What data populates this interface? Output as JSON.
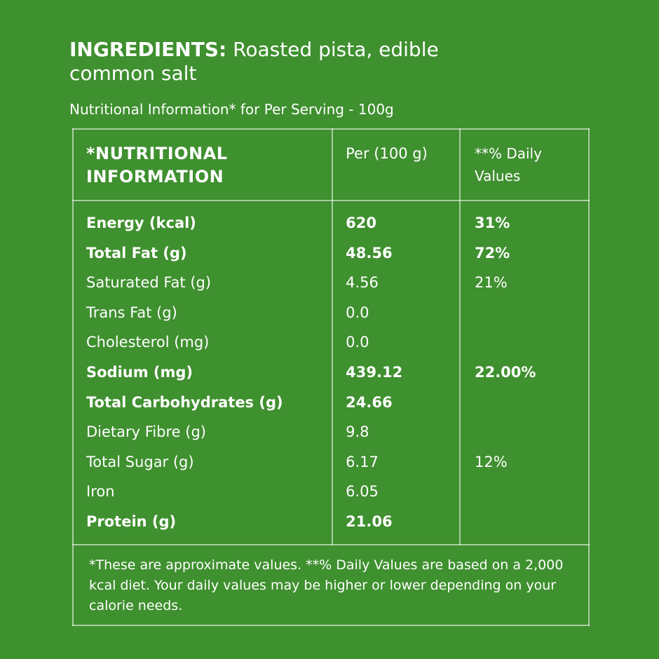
{
  "ingredients": {
    "label": "INGREDIENTS:",
    "text": "Roasted pista, edible common salt"
  },
  "subtitle": "Nutritional Information* for Per Serving - 100g",
  "table": {
    "header": [
      "*NUTRITIONAL INFORMATION",
      "Per (100 g)",
      "**% Daily Values"
    ],
    "rows": [
      {
        "nutrient": "Energy (kcal)",
        "per_100g": "620",
        "daily_value": "31%",
        "bold": true
      },
      {
        "nutrient": "Total Fat (g)",
        "per_100g": "48.56",
        "daily_value": "72%",
        "bold": true
      },
      {
        "nutrient": "Saturated Fat (g)",
        "per_100g": "4.56",
        "daily_value": "21%",
        "bold": false
      },
      {
        "nutrient": "Trans Fat (g)",
        "per_100g": "0.0",
        "bold": false
      },
      {
        "nutrient": "Cholesterol (mg)",
        "per_100g": "0.0",
        "bold": false
      },
      {
        "nutrient": "Sodium (mg)",
        "per_100g": "439.12",
        "daily_value": "22.00%",
        "bold": true
      },
      {
        "nutrient": "Total Carbohydrates (g)",
        "per_100g": "24.66",
        "bold": true
      },
      {
        "nutrient": "Dietary Fibre (g)",
        "per_100g": "9.8",
        "bold": false
      },
      {
        "nutrient": "Total Sugar (g)",
        "per_100g": "6.17",
        "daily_value": "12%",
        "bold": false
      },
      {
        "nutrient": "Iron",
        "per_100g": "6.05",
        "bold": false
      },
      {
        "nutrient": "Protein (g)",
        "per_100g": "21.06",
        "bold": true
      }
    ],
    "footnote": "*These are approximate values.  **% Daily Values are based on a 2,000 kcal diet. Your daily values may be higher or lower depending on your calorie needs."
  }
}
